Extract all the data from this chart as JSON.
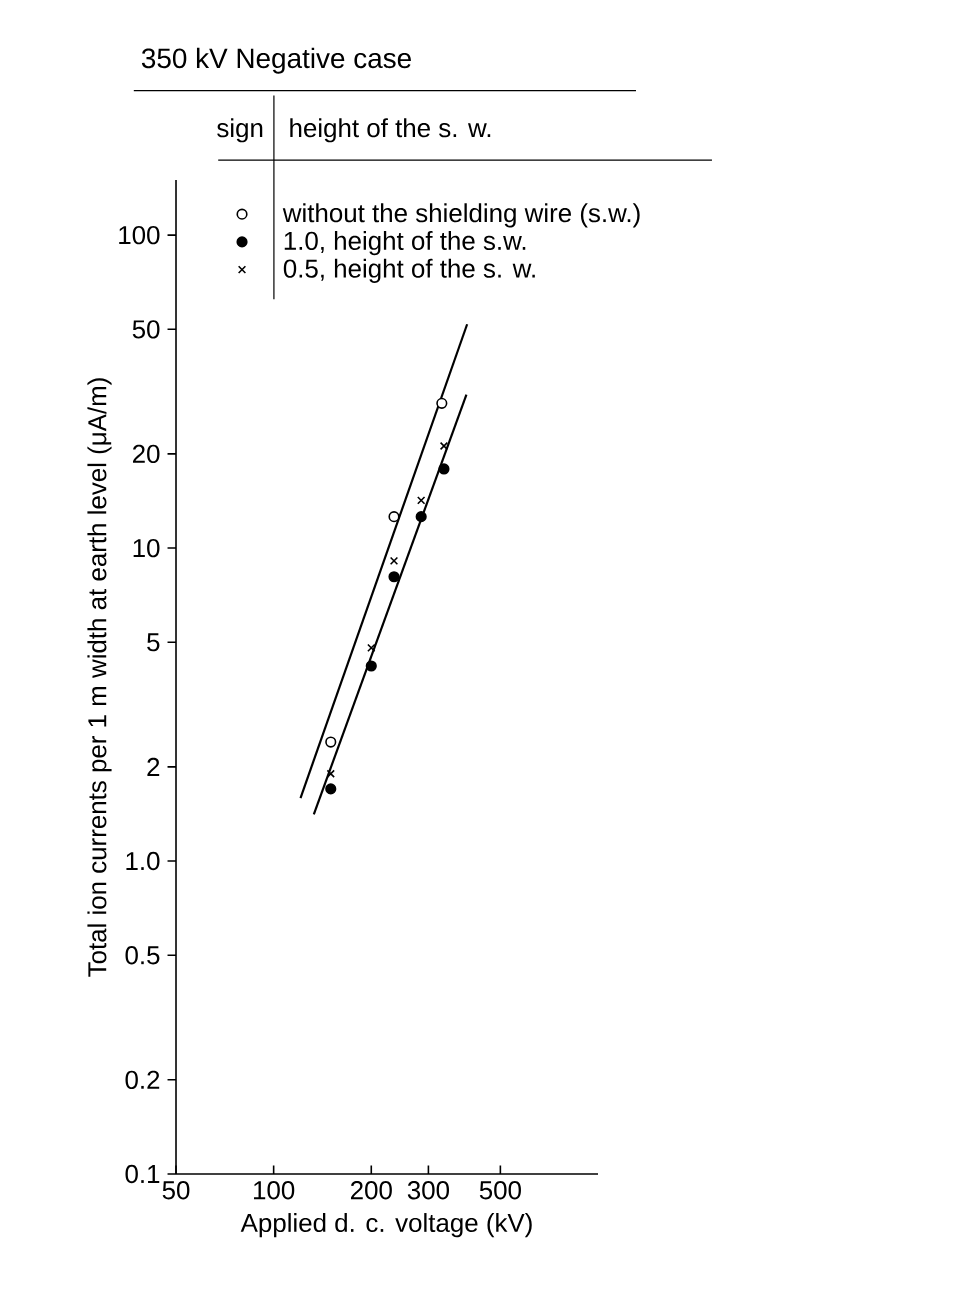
{
  "chart_data": {
    "type": "scatter",
    "title": "350 kV Negative case",
    "legend_title": "height of the s. w.",
    "annotations": [
      "sign"
    ],
    "xlabel": "Applied d. c. voltage (kV)",
    "ylabel": "Total ion currents per 1 m width at earth level (μA/m)",
    "log": "xy",
    "xlim": [
      50,
      1000
    ],
    "ylim": [
      0.1,
      150
    ],
    "xticks": [
      50,
      100,
      200,
      300,
      500
    ],
    "yticks": [
      0.1,
      0.2,
      0.5,
      {
        "value": 1,
        "label": "1.0"
      },
      2,
      5,
      10,
      20,
      50,
      100
    ],
    "legend": "top right",
    "series": [
      {
        "name": "without the shielding wire (s.w.)",
        "marker": "circle",
        "color": "#ffffff",
        "x": [
          150,
          235,
          330
        ],
        "values": [
          2.4,
          12.6,
          29
        ]
      },
      {
        "name": "1.0, height of the s.w.",
        "marker": "circle",
        "color": "#000000",
        "x": [
          150,
          200,
          235,
          285,
          335
        ],
        "values": [
          1.7,
          4.2,
          8.1,
          12.6,
          17.9
        ]
      },
      {
        "name": "0.5, height of the s. w.",
        "marker": "cross",
        "color": "#000000",
        "x": [
          150,
          200,
          235,
          285,
          335
        ],
        "values": [
          1.9,
          4.8,
          9.1,
          14.2,
          21.2
        ]
      },
      {
        "type": "line",
        "marker": "none",
        "color": "#000000",
        "x": [
          121,
          395
        ],
        "values": [
          1.59,
          51.9
        ]
      },
      {
        "type": "line",
        "marker": "none",
        "color": "#000000",
        "x": [
          133,
          393
        ],
        "values": [
          1.41,
          30.9
        ]
      }
    ]
  }
}
